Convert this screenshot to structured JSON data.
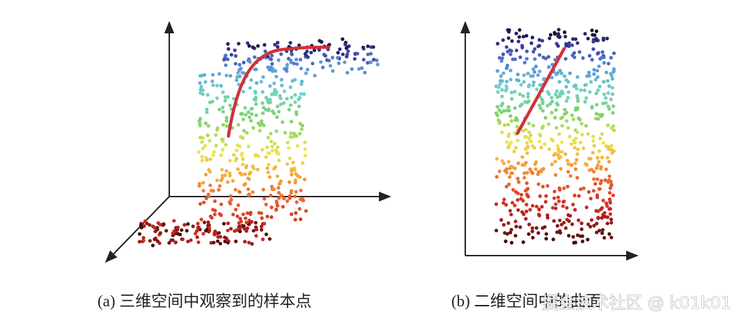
{
  "figure": {
    "caption_a": "(a) 三维空间中观察到的样本点",
    "caption_b": "(b) 二维空间中的曲面",
    "watermark": "掘金技术社区 @ k01k01"
  }
}
